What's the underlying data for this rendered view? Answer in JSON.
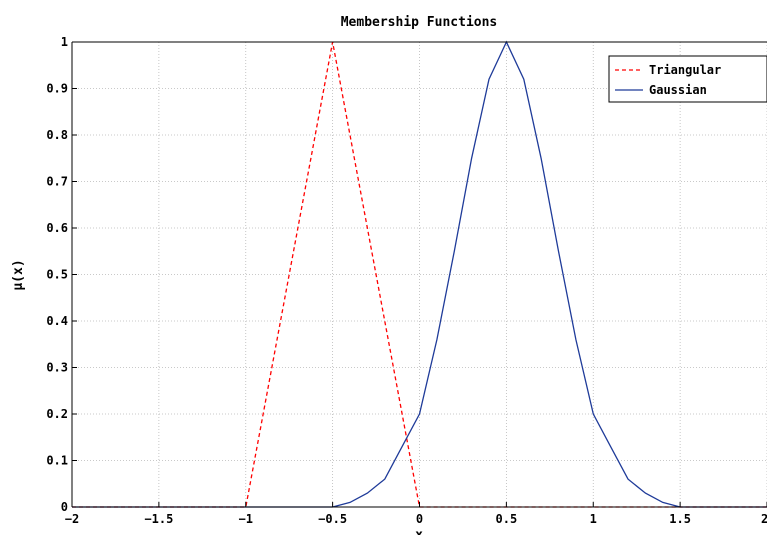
{
  "chart_data": {
    "type": "line",
    "title": "Membership Functions",
    "xlabel": "x",
    "ylabel": "μ(x)",
    "xlim": [
      -2,
      2
    ],
    "ylim": [
      0,
      1
    ],
    "xticks": [
      -2,
      -1.5,
      -1,
      -0.5,
      0,
      0.5,
      1,
      1.5,
      2
    ],
    "xtick_labels": [
      "−2",
      "−1.5",
      "−1",
      "−0.5",
      "0",
      "0.5",
      "1",
      "1.5",
      "2"
    ],
    "yticks": [
      0,
      0.1,
      0.2,
      0.3,
      0.4,
      0.5,
      0.6,
      0.7,
      0.8,
      0.9,
      1
    ],
    "ytick_labels": [
      "0",
      "0.1",
      "0.2",
      "0.3",
      "0.4",
      "0.5",
      "0.6",
      "0.7",
      "0.8",
      "0.9",
      "1"
    ],
    "grid": true,
    "legend_position": "top-right",
    "series": [
      {
        "name": "Triangular",
        "color": "#ff0000",
        "style": "dashed",
        "x": [
          -2,
          -1,
          -0.5,
          0,
          2
        ],
        "y": [
          0,
          0,
          1,
          0,
          0
        ]
      },
      {
        "name": "Gaussian",
        "color": "#1f3b99",
        "style": "solid",
        "x": [
          -2,
          -0.5,
          -0.4,
          -0.3,
          -0.2,
          -0.1,
          0,
          0.1,
          0.2,
          0.3,
          0.4,
          0.5,
          0.6,
          0.7,
          0.8,
          0.9,
          1,
          1.1,
          1.2,
          1.3,
          1.4,
          1.5,
          2
        ],
        "y": [
          0,
          0,
          0.01,
          0.03,
          0.06,
          0.13,
          0.2,
          0.36,
          0.55,
          0.75,
          0.92,
          1,
          0.92,
          0.75,
          0.55,
          0.36,
          0.2,
          0.13,
          0.06,
          0.03,
          0.01,
          0,
          0
        ]
      }
    ]
  }
}
